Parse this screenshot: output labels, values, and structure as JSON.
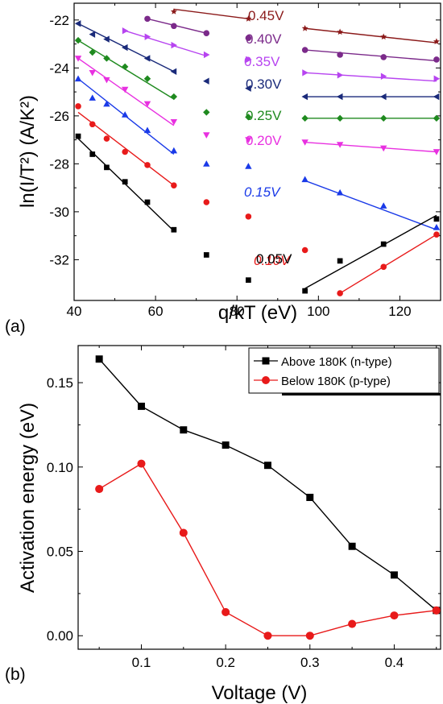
{
  "chart_data": [
    {
      "panel_label": "(a)",
      "type": "scatter",
      "xlabel": "q/kT (eV)",
      "ylabel": "ln(I/T²) (A/K²)",
      "xlim": [
        40,
        130
      ],
      "ylim": [
        -33.7,
        -21.3
      ],
      "xticks": [
        40,
        60,
        80,
        100,
        120
      ],
      "yticks": [
        -32,
        -30,
        -28,
        -26,
        -24,
        -22
      ],
      "grid": false,
      "series": [
        {
          "name": "0.45V",
          "color": "#8b1a1a",
          "marker": "star",
          "points": [
            [
              64.5,
              -21.65
            ],
            [
              82.8,
              -21.95
            ],
            [
              96.7,
              -22.35
            ],
            [
              105.3,
              -22.5
            ],
            [
              116.0,
              -22.7
            ],
            [
              129.0,
              -22.9
            ]
          ],
          "fits": [
            [
              [
                64.5,
                -21.55
              ],
              [
                82.8,
                -21.95
              ]
            ],
            [
              [
                96.7,
                -22.35
              ],
              [
                129.0,
                -22.95
              ]
            ]
          ]
        },
        {
          "name": "0.40V",
          "color": "#7b2a8a",
          "marker": "circle",
          "points": [
            [
              58.0,
              -21.95
            ],
            [
              64.5,
              -22.25
            ],
            [
              72.5,
              -22.55
            ],
            [
              82.8,
              -22.75
            ],
            [
              96.7,
              -23.25
            ],
            [
              105.3,
              -23.45
            ],
            [
              116.0,
              -23.55
            ],
            [
              129.0,
              -23.65
            ]
          ],
          "fits": [
            [
              [
                58.0,
                -21.95
              ],
              [
                72.5,
                -22.55
              ]
            ],
            [
              [
                96.7,
                -23.25
              ],
              [
                129.0,
                -23.7
              ]
            ]
          ]
        },
        {
          "name": "0.35V",
          "color": "#b744f0",
          "marker": "triangle-right",
          "points": [
            [
              52.5,
              -22.45
            ],
            [
              58.0,
              -22.7
            ],
            [
              64.5,
              -23.05
            ],
            [
              72.5,
              -23.45
            ],
            [
              82.8,
              -23.65
            ],
            [
              96.7,
              -24.2
            ],
            [
              105.3,
              -24.3
            ],
            [
              116.0,
              -24.35
            ],
            [
              129.0,
              -24.45
            ]
          ],
          "fits": [
            [
              [
                52.5,
                -22.45
              ],
              [
                72.5,
                -23.5
              ]
            ],
            [
              [
                96.7,
                -24.2
              ],
              [
                129.0,
                -24.55
              ]
            ]
          ]
        },
        {
          "name": "0.30V",
          "color": "#1a2a7a",
          "marker": "triangle-left",
          "points": [
            [
              41.0,
              -22.15
            ],
            [
              44.5,
              -22.6
            ],
            [
              48.0,
              -22.8
            ],
            [
              52.5,
              -23.15
            ],
            [
              58.0,
              -23.6
            ],
            [
              64.5,
              -24.15
            ],
            [
              72.5,
              -24.55
            ],
            [
              82.8,
              -24.85
            ],
            [
              96.7,
              -25.2
            ],
            [
              105.3,
              -25.2
            ],
            [
              116.0,
              -25.2
            ],
            [
              129.0,
              -25.2
            ]
          ],
          "fits": [
            [
              [
                41.0,
                -22.15
              ],
              [
                64.5,
                -24.15
              ]
            ],
            [
              [
                96.7,
                -25.2
              ],
              [
                129.0,
                -25.2
              ]
            ]
          ]
        },
        {
          "name": "0.25V",
          "color": "#1f8a1f",
          "marker": "diamond",
          "points": [
            [
              41.0,
              -22.85
            ],
            [
              44.5,
              -23.35
            ],
            [
              48.0,
              -23.6
            ],
            [
              52.5,
              -23.95
            ],
            [
              58.0,
              -24.45
            ],
            [
              64.5,
              -25.2
            ],
            [
              72.5,
              -25.85
            ],
            [
              82.8,
              -26.05
            ],
            [
              96.7,
              -26.1
            ],
            [
              105.3,
              -26.1
            ],
            [
              116.0,
              -26.1
            ],
            [
              129.0,
              -26.1
            ]
          ],
          "fits": [
            [
              [
                41.0,
                -22.85
              ],
              [
                64.5,
                -25.3
              ]
            ],
            [
              [
                96.7,
                -26.1
              ],
              [
                129.0,
                -26.1
              ]
            ]
          ]
        },
        {
          "name": "0.20V",
          "color": "#e830e0",
          "marker": "triangle-down",
          "points": [
            [
              41.0,
              -23.6
            ],
            [
              44.5,
              -24.2
            ],
            [
              48.0,
              -24.5
            ],
            [
              52.5,
              -24.9
            ],
            [
              58.0,
              -25.5
            ],
            [
              64.5,
              -26.25
            ],
            [
              72.5,
              -26.8
            ],
            [
              82.8,
              -27.0
            ],
            [
              96.7,
              -27.1
            ],
            [
              105.3,
              -27.2
            ],
            [
              116.0,
              -27.35
            ],
            [
              129.0,
              -27.5
            ]
          ],
          "fits": [
            [
              [
                41.0,
                -23.6
              ],
              [
                64.5,
                -26.4
              ]
            ],
            [
              [
                96.7,
                -27.1
              ],
              [
                129.0,
                -27.5
              ]
            ]
          ]
        },
        {
          "name": "0.15V",
          "color": "#1a3ae8",
          "marker": "triangle-up",
          "points": [
            [
              41.0,
              -24.45
            ],
            [
              44.5,
              -25.25
            ],
            [
              48.0,
              -25.5
            ],
            [
              52.5,
              -25.95
            ],
            [
              58.0,
              -26.6
            ],
            [
              64.5,
              -27.45
            ],
            [
              72.5,
              -28.0
            ],
            [
              82.8,
              -28.1
            ],
            [
              96.7,
              -28.65
            ],
            [
              105.3,
              -29.2
            ],
            [
              116.0,
              -29.75
            ],
            [
              129.0,
              -30.65
            ]
          ],
          "fits": [
            [
              [
                41.0,
                -24.45
              ],
              [
                64.5,
                -27.6
              ]
            ],
            [
              [
                96.7,
                -28.7
              ],
              [
                129.0,
                -30.75
              ]
            ]
          ]
        },
        {
          "name": "0.10V",
          "color": "#e81a1a",
          "marker": "circle",
          "points": [
            [
              41.0,
              -25.6
            ],
            [
              44.5,
              -26.35
            ],
            [
              48.0,
              -26.95
            ],
            [
              52.5,
              -27.5
            ],
            [
              58.0,
              -28.05
            ],
            [
              64.5,
              -28.9
            ],
            [
              72.5,
              -29.6
            ],
            [
              82.8,
              -30.2
            ],
            [
              96.7,
              -31.6
            ],
            [
              105.3,
              -33.4
            ],
            [
              116.0,
              -32.3
            ],
            [
              129.0,
              -30.95
            ]
          ],
          "fits": [
            [
              [
                41.0,
                -25.85
              ],
              [
                64.5,
                -28.9
              ]
            ],
            [
              [
                105.3,
                -33.4
              ],
              [
                129.0,
                -30.95
              ]
            ]
          ]
        },
        {
          "name": "0.05V",
          "color": "#000000",
          "marker": "square",
          "points": [
            [
              41.0,
              -26.85
            ],
            [
              44.5,
              -27.6
            ],
            [
              48.0,
              -28.15
            ],
            [
              52.5,
              -28.75
            ],
            [
              58.0,
              -29.6
            ],
            [
              64.5,
              -30.75
            ],
            [
              72.5,
              -31.8
            ],
            [
              82.8,
              -32.85
            ],
            [
              96.7,
              -33.3
            ],
            [
              105.3,
              -32.05
            ],
            [
              116.0,
              -31.35
            ],
            [
              129.0,
              -30.3
            ]
          ],
          "fits": [
            [
              [
                41.0,
                -26.95
              ],
              [
                64.5,
                -30.8
              ]
            ],
            [
              [
                96.7,
                -33.2
              ],
              [
                129.0,
                -30.15
              ]
            ]
          ]
        }
      ]
    },
    {
      "panel_label": "(b)",
      "type": "line",
      "xlabel": "Voltage (V)",
      "ylabel": "Activation energy (eV)",
      "xlim": [
        0.025,
        0.455
      ],
      "ylim": [
        -0.008,
        0.172
      ],
      "xticks": [
        0.1,
        0.2,
        0.3,
        0.4
      ],
      "xtick_labels": [
        "0.1",
        "0.2",
        "0.3",
        "0.4"
      ],
      "yticks": [
        0.0,
        0.05,
        0.1,
        0.15
      ],
      "ytick_labels": [
        "0.00",
        "0.05",
        "0.10",
        "0.15"
      ],
      "grid": false,
      "legend_position": "top-right",
      "x": [
        0.05,
        0.1,
        0.15,
        0.2,
        0.25,
        0.3,
        0.35,
        0.4,
        0.45
      ],
      "series": [
        {
          "name": "Above 180K (n-type)",
          "color": "#000000",
          "marker": "square",
          "values": [
            0.164,
            0.136,
            0.122,
            0.113,
            0.101,
            0.082,
            0.053,
            0.036,
            0.015
          ]
        },
        {
          "name": "Below 180K (p-type)",
          "color": "#e81a1a",
          "marker": "circle",
          "values": [
            0.087,
            0.102,
            0.061,
            0.014,
            0.0,
            0.0,
            0.007,
            0.012,
            0.015
          ]
        }
      ]
    }
  ]
}
